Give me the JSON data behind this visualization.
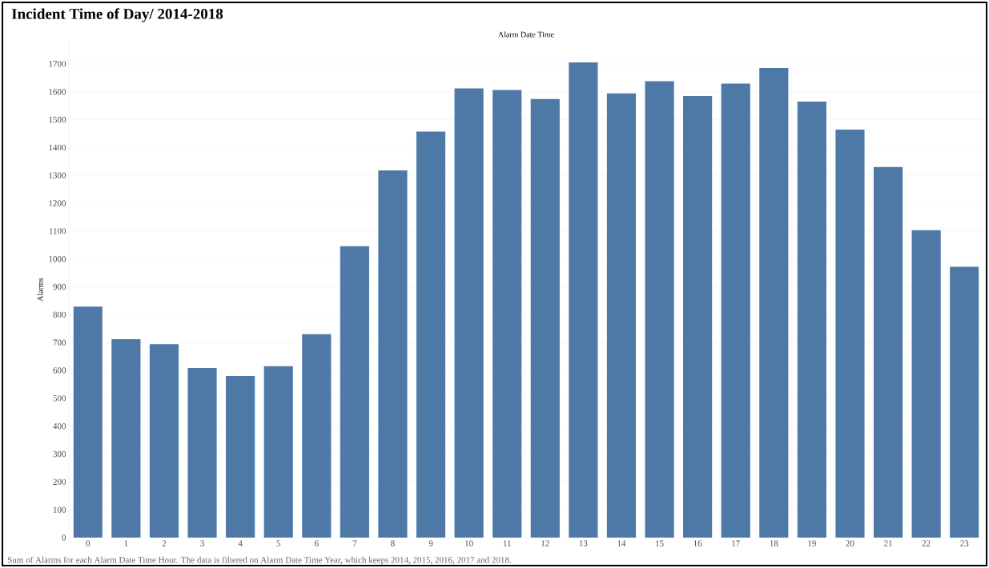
{
  "chart_data": {
    "type": "bar",
    "title": "Incident Time of Day/ 2014-2018",
    "xlabel": "Alarm Date Time",
    "ylabel": "Alarms",
    "categories": [
      "0",
      "1",
      "2",
      "3",
      "4",
      "5",
      "6",
      "7",
      "8",
      "9",
      "10",
      "11",
      "12",
      "13",
      "14",
      "15",
      "16",
      "17",
      "18",
      "19",
      "20",
      "21",
      "22",
      "23"
    ],
    "values": [
      829,
      712,
      694,
      609,
      580,
      615,
      730,
      1046,
      1318,
      1457,
      1612,
      1606,
      1574,
      1705,
      1594,
      1638,
      1585,
      1629,
      1685,
      1565,
      1464,
      1330,
      1103,
      972
    ],
    "color": "#4e79a7",
    "ylim": [
      0,
      1780
    ],
    "yticks": [
      0,
      100,
      200,
      300,
      400,
      500,
      600,
      700,
      800,
      900,
      1000,
      1100,
      1200,
      1300,
      1400,
      1500,
      1600,
      1700
    ],
    "grid": "y",
    "annotations": [
      "Sum of Alarms for each Alarm Date Time Hour. The data is filtered on Alarm Date Time Year, which keeps 2014, 2015, 2016, 2017 and 2018."
    ]
  }
}
